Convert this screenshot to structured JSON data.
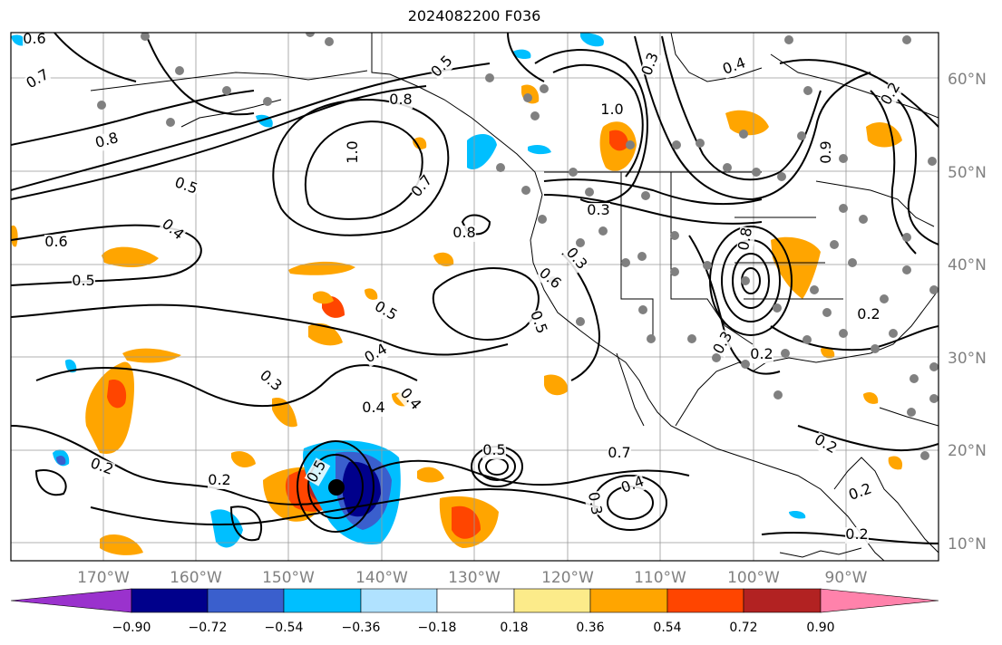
{
  "title": "2024082200 F036",
  "map": {
    "lon_labels": [
      "170°W",
      "160°W",
      "150°W",
      "140°W",
      "130°W",
      "120°W",
      "110°W",
      "100°W",
      "90°W"
    ],
    "lat_labels": [
      "60°N",
      "50°N",
      "40°N",
      "30°N",
      "20°N",
      "10°N"
    ],
    "contour_labels": [
      "0.6",
      "0.7",
      "0.8",
      "0.5",
      "0.4",
      "0.6",
      "0.5",
      "0.3",
      "0.2",
      "0.2",
      "0.3",
      "0.4",
      "0.5",
      "0.5",
      "0.8",
      "0.7",
      "0.4",
      "0.3",
      "0.5",
      "0.2",
      "0.2",
      "0.4",
      "0.3",
      "0.8",
      "0.6",
      "0.3",
      "0.4",
      "0.9",
      "0.8",
      "0.7",
      "0.5",
      "1.0",
      "1.0",
      "0.5",
      "0.4",
      "0.2",
      "0.3",
      "0.2",
      "0.2",
      "0.2"
    ],
    "colors": {
      "purple": "#9a32cd",
      "navy": "#00008b",
      "royal": "#3a5fcd",
      "sky": "#00bfff",
      "light_sky": "#b0e2ff",
      "white": "#ffffff",
      "khaki": "#fceb8a",
      "orange": "#ffa500",
      "orange_red": "#ff4500",
      "firebrick": "#b22222",
      "pink": "#ff82ab",
      "station": "#808080"
    }
  },
  "colorbar": {
    "ticks": [
      "−0.90",
      "−0.72",
      "−0.54",
      "−0.36",
      "−0.18",
      "0.18",
      "0.36",
      "0.54",
      "0.72",
      "0.90"
    ]
  }
}
